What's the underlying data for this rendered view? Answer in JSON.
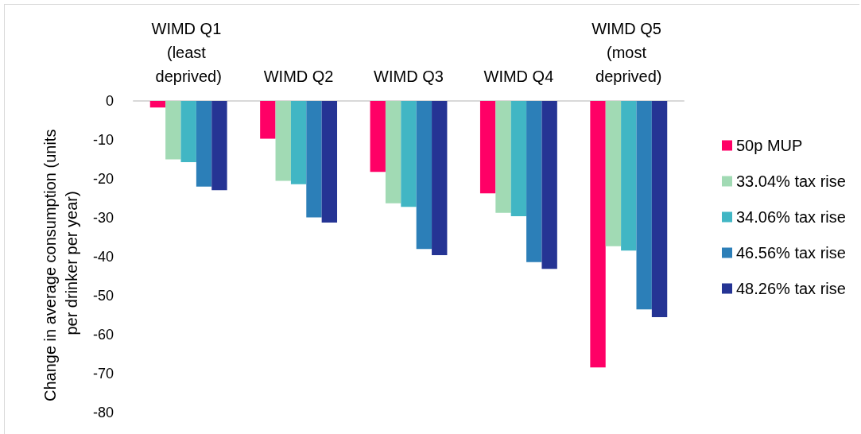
{
  "chart_data": {
    "type": "bar",
    "categories": [
      "WIMD Q1 (least deprived)",
      "WIMD Q2",
      "WIMD Q3",
      "WIMD Q4",
      "WIMD Q5 (most deprived)"
    ],
    "ylabel": "Change in average consumption (units per drinker per year)",
    "series": [
      {
        "name": "50p MUP",
        "color": "#ff0066",
        "values": [
          -1.7,
          -9.7,
          -18.2,
          -23.7,
          -68.4
        ]
      },
      {
        "name": "33.04% tax rise",
        "color": "#a1dab4",
        "values": [
          -15.0,
          -20.5,
          -26.3,
          -28.7,
          -37.3
        ]
      },
      {
        "name": "34.06% tax rise",
        "color": "#41b6c4",
        "values": [
          -15.7,
          -21.4,
          -27.2,
          -29.6,
          -38.4
        ]
      },
      {
        "name": "46.56% tax rise",
        "color": "#2c7fb8",
        "values": [
          -22.0,
          -29.9,
          -38.0,
          -41.4,
          -53.5
        ]
      },
      {
        "name": "48.26% tax rise",
        "color": "#253494",
        "values": [
          -22.9,
          -31.2,
          -39.6,
          -43.1,
          -55.5
        ]
      }
    ],
    "ylim": [
      -80,
      0
    ],
    "yticks": [
      0,
      -10,
      -20,
      -30,
      -40,
      -50,
      -60,
      -70,
      -80
    ],
    "grid": false,
    "legend": "right"
  }
}
